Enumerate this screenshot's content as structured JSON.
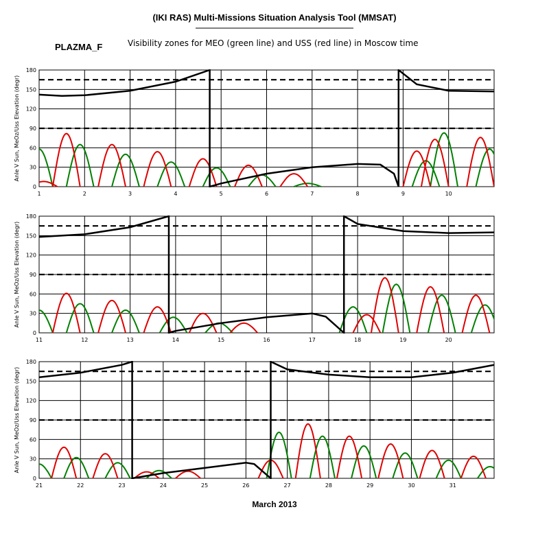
{
  "header": {
    "title": "(IKI RAS) Multi-Missions Situation Analysis Tool (MMSAT)",
    "instrument": "PLAZMA_F",
    "subtitle": "Visibility zones for MEO (green line) and USS (red line) in Moscow time"
  },
  "colors": {
    "sun": "#000000",
    "meo": "#008000",
    "uss": "#e00000",
    "grid": "#000000"
  },
  "chart_data": {
    "type": "line",
    "title": "Visibility zones for MEO (green line) and USS (red line) in Moscow time",
    "xlabel": "March 2013",
    "ylabel": "Anle V Sun, MeOz/Uss Elevation (degr)",
    "ylim": [
      0,
      180
    ],
    "yticks": [
      0,
      30,
      60,
      90,
      120,
      150,
      180
    ],
    "reference_levels": [
      90,
      165
    ],
    "panels": [
      {
        "xlim": [
          1,
          11
        ],
        "xticks": [
          "1",
          "2",
          "3",
          "4",
          "5",
          "6",
          "7",
          "8",
          "9",
          "10"
        ],
        "sun_angle": [
          [
            1,
            142
          ],
          [
            1.5,
            140
          ],
          [
            2,
            141
          ],
          [
            3,
            148
          ],
          [
            4,
            162
          ],
          [
            4.75,
            180
          ],
          [
            4.75,
            0
          ],
          [
            5,
            5
          ],
          [
            6,
            20
          ],
          [
            7,
            30
          ],
          [
            8,
            35
          ],
          [
            8.5,
            34
          ],
          [
            8.8,
            20
          ],
          [
            8.9,
            0
          ],
          [
            8.9,
            180
          ],
          [
            9.3,
            158
          ],
          [
            10,
            148
          ],
          [
            11,
            147
          ]
        ],
        "uss_peaks": [
          [
            1.1,
            8
          ],
          [
            1.6,
            82
          ],
          [
            2.6,
            65
          ],
          [
            3.6,
            54
          ],
          [
            4.6,
            43
          ],
          [
            5.6,
            33
          ],
          [
            6.6,
            20
          ],
          [
            9.3,
            55
          ],
          [
            9.7,
            73
          ],
          [
            10.7,
            76
          ]
        ],
        "meo_peaks": [
          [
            1,
            58
          ],
          [
            1.9,
            65
          ],
          [
            2.9,
            50
          ],
          [
            3.9,
            38
          ],
          [
            4.9,
            29
          ],
          [
            5.9,
            18
          ],
          [
            6.9,
            5
          ],
          [
            9.5,
            40
          ],
          [
            9.9,
            83
          ],
          [
            10.9,
            58
          ]
        ]
      },
      {
        "xlim": [
          11,
          21
        ],
        "xticks": [
          "11",
          "12",
          "13",
          "14",
          "15",
          "16",
          "17",
          "18",
          "19",
          "20"
        ],
        "sun_angle": [
          [
            11,
            148
          ],
          [
            12,
            152
          ],
          [
            13,
            163
          ],
          [
            13.85,
            180
          ],
          [
            13.85,
            0
          ],
          [
            14,
            3
          ],
          [
            15,
            15
          ],
          [
            16,
            24
          ],
          [
            17,
            30
          ],
          [
            17.3,
            25
          ],
          [
            17.7,
            0
          ],
          [
            17.7,
            180
          ],
          [
            18,
            168
          ],
          [
            19,
            157
          ],
          [
            20,
            154
          ],
          [
            21,
            155
          ]
        ],
        "uss_peaks": [
          [
            11.6,
            61
          ],
          [
            12.6,
            50
          ],
          [
            13.6,
            40
          ],
          [
            14.6,
            30
          ],
          [
            15.5,
            15
          ],
          [
            18.2,
            28
          ],
          [
            18.6,
            85
          ],
          [
            19.6,
            71
          ],
          [
            20.6,
            58
          ]
        ],
        "meo_peaks": [
          [
            11,
            35
          ],
          [
            11.9,
            45
          ],
          [
            12.9,
            35
          ],
          [
            13.95,
            24
          ],
          [
            14.95,
            15
          ],
          [
            17.9,
            40
          ],
          [
            18.85,
            75
          ],
          [
            19.85,
            58
          ],
          [
            20.8,
            43
          ]
        ]
      },
      {
        "xlim": [
          21,
          32
        ],
        "xticks": [
          "21",
          "22",
          "23",
          "24",
          "25",
          "26",
          "27",
          "28",
          "29",
          "30",
          "31"
        ],
        "sun_angle": [
          [
            21,
            156
          ],
          [
            22,
            163
          ],
          [
            23,
            175
          ],
          [
            23.25,
            180
          ],
          [
            23.25,
            0
          ],
          [
            24,
            8
          ],
          [
            25,
            16
          ],
          [
            26,
            24
          ],
          [
            26.2,
            22
          ],
          [
            26.6,
            0
          ],
          [
            26.6,
            180
          ],
          [
            27,
            168
          ],
          [
            28,
            160
          ],
          [
            29,
            156
          ],
          [
            30,
            156
          ],
          [
            31,
            163
          ],
          [
            32,
            175
          ]
        ],
        "uss_peaks": [
          [
            21.6,
            48
          ],
          [
            22.6,
            38
          ],
          [
            23.6,
            10
          ],
          [
            24.6,
            11
          ],
          [
            26.6,
            28
          ],
          [
            27.5,
            84
          ],
          [
            28.5,
            65
          ],
          [
            29.5,
            53
          ],
          [
            30.5,
            43
          ],
          [
            31.5,
            34
          ]
        ],
        "meo_peaks": [
          [
            21,
            22
          ],
          [
            21.9,
            32
          ],
          [
            22.9,
            24
          ],
          [
            23.9,
            12
          ],
          [
            26.8,
            71
          ],
          [
            27.85,
            65
          ],
          [
            28.85,
            50
          ],
          [
            29.85,
            39
          ],
          [
            30.9,
            28
          ],
          [
            31.9,
            18
          ]
        ]
      }
    ]
  }
}
